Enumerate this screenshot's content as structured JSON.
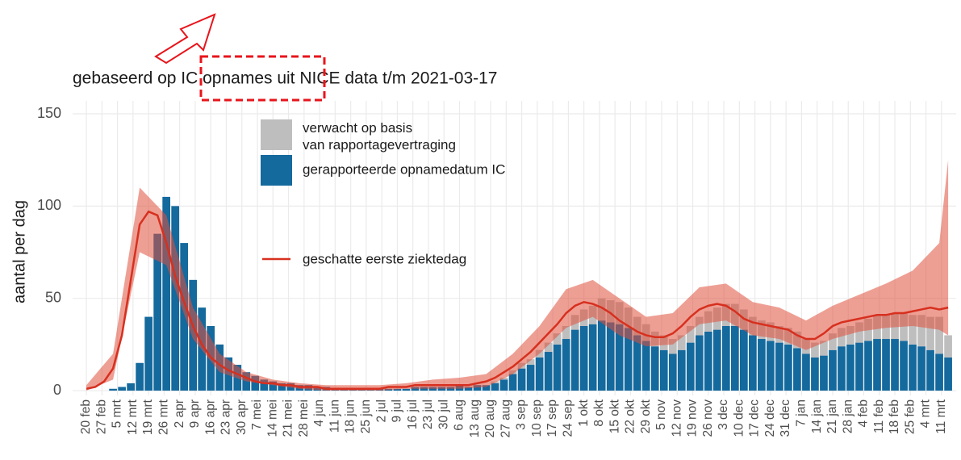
{
  "chart_data": {
    "type": "bar",
    "title": "gebaseerd op IC opnames uit NICE data t/m 2021-03-17",
    "ylabel": "aantal per dag",
    "x": [
      0,
      4,
      8,
      12,
      16,
      20,
      24,
      28,
      32,
      36,
      40,
      44,
      48,
      52,
      56,
      60,
      64,
      68,
      72,
      76,
      80,
      84,
      88,
      92,
      96,
      100,
      104,
      108,
      112,
      116,
      120,
      124,
      128,
      132,
      136,
      140,
      144,
      148,
      152,
      156,
      160,
      164,
      168,
      172,
      176,
      180,
      184,
      188,
      192,
      196,
      200,
      204,
      208,
      212,
      216,
      220,
      224,
      228,
      232,
      236,
      240,
      244,
      248,
      252,
      256,
      260,
      264,
      268,
      272,
      276,
      280,
      284,
      288,
      292,
      296,
      300,
      304,
      308,
      312,
      316,
      320,
      324,
      328,
      332,
      336,
      340,
      344,
      348,
      352,
      356,
      360,
      364,
      368,
      372,
      376,
      380,
      384,
      388
    ],
    "series": [
      {
        "name": "gerapporteerde opnamedatum IC",
        "color": "#14699d",
        "values": [
          0,
          0,
          0,
          1,
          2,
          4,
          15,
          40,
          85,
          105,
          100,
          80,
          60,
          45,
          35,
          25,
          18,
          14,
          10,
          8,
          6,
          5,
          4,
          4,
          3,
          3,
          2,
          2,
          1,
          1,
          1,
          1,
          1,
          1,
          1,
          1,
          1,
          2,
          2,
          2,
          2,
          2,
          3,
          2,
          3,
          3,
          4,
          6,
          9,
          12,
          14,
          18,
          21,
          25,
          28,
          33,
          35,
          36,
          38,
          37,
          36,
          34,
          30,
          27,
          24,
          22,
          20,
          22,
          26,
          30,
          32,
          33,
          35,
          35,
          33,
          30,
          28,
          27,
          26,
          25,
          23,
          20,
          18,
          19,
          22,
          24,
          25,
          26,
          27,
          28,
          28,
          28,
          27,
          25,
          24,
          22,
          20,
          18
        ]
      },
      {
        "name": "verwacht op basis van rapportagevertraging",
        "color": "#bebebe",
        "values": [
          0,
          0,
          0,
          0,
          0,
          0,
          0,
          0,
          0,
          0,
          0,
          0,
          0,
          0,
          0,
          0,
          0,
          0,
          0,
          0,
          0,
          0,
          0,
          0,
          0,
          0,
          0,
          0,
          0,
          0,
          0,
          0,
          0,
          0,
          0,
          0,
          0,
          0,
          0,
          0,
          0,
          0,
          0,
          0,
          0,
          0,
          1,
          1,
          2,
          3,
          3,
          4,
          5,
          6,
          7,
          8,
          9,
          10,
          12,
          12,
          12,
          11,
          10,
          9,
          8,
          8,
          8,
          8,
          9,
          10,
          11,
          12,
          12,
          12,
          11,
          10,
          10,
          10,
          9,
          9,
          9,
          8,
          8,
          8,
          9,
          10,
          10,
          11,
          12,
          13,
          13,
          14,
          15,
          16,
          17,
          18,
          20,
          12
        ]
      }
    ],
    "line": {
      "name": "geschatte eerste ziektedag",
      "color": "#d7301f",
      "values": [
        1,
        2,
        5,
        12,
        30,
        60,
        90,
        97,
        95,
        80,
        62,
        48,
        35,
        25,
        18,
        14,
        11,
        9,
        7,
        5,
        4,
        4,
        3,
        3,
        2,
        2,
        2,
        1,
        1,
        1,
        1,
        1,
        1,
        1,
        2,
        2,
        2,
        3,
        3,
        3,
        3,
        3,
        3,
        3,
        4,
        5,
        7,
        10,
        13,
        17,
        21,
        26,
        31,
        36,
        42,
        46,
        48,
        47,
        45,
        42,
        38,
        35,
        32,
        30,
        29,
        29,
        31,
        35,
        40,
        44,
        46,
        47,
        46,
        43,
        39,
        37,
        36,
        35,
        34,
        33,
        30,
        28,
        28,
        31,
        35,
        37,
        38,
        39,
        40,
        41,
        41,
        42,
        42,
        43,
        44,
        45,
        44,
        45
      ]
    },
    "band": {
      "color": "#e0503c",
      "x": [
        0,
        12,
        24,
        36,
        48,
        60,
        72,
        84,
        96,
        108,
        120,
        132,
        144,
        156,
        168,
        180,
        192,
        204,
        216,
        228,
        240,
        252,
        264,
        276,
        288,
        300,
        312,
        324,
        336,
        348,
        360,
        372,
        384,
        388
      ],
      "upper": [
        3,
        20,
        110,
        95,
        45,
        20,
        10,
        6,
        4,
        3,
        3,
        3,
        4,
        6,
        7,
        9,
        20,
        35,
        55,
        60,
        50,
        40,
        42,
        56,
        58,
        48,
        45,
        38,
        46,
        52,
        58,
        65,
        80,
        125
      ],
      "lower": [
        0,
        6,
        75,
        68,
        28,
        10,
        5,
        3,
        1,
        0,
        0,
        0,
        1,
        1,
        1,
        2,
        9,
        20,
        34,
        40,
        30,
        24,
        25,
        36,
        38,
        30,
        28,
        22,
        28,
        32,
        34,
        35,
        33,
        30
      ]
    },
    "xlim": [
      -6.2,
      391.6
    ],
    "ylim": [
      -2.6,
      157
    ],
    "yticks": [
      0,
      50,
      100,
      150
    ],
    "xticks": [
      {
        "value": 0,
        "label": "20 feb"
      },
      {
        "value": 7,
        "label": "27 feb"
      },
      {
        "value": 14,
        "label": "5 mrt"
      },
      {
        "value": 21,
        "label": "12 mrt"
      },
      {
        "value": 28,
        "label": "19 mrt"
      },
      {
        "value": 35,
        "label": "26 mrt"
      },
      {
        "value": 42,
        "label": "2 apr"
      },
      {
        "value": 49,
        "label": "9 apr"
      },
      {
        "value": 56,
        "label": "16 apr"
      },
      {
        "value": 63,
        "label": "23 apr"
      },
      {
        "value": 70,
        "label": "30 apr"
      },
      {
        "value": 77,
        "label": "7 mei"
      },
      {
        "value": 84,
        "label": "14 mei"
      },
      {
        "value": 91,
        "label": "21 mei"
      },
      {
        "value": 98,
        "label": "28 mei"
      },
      {
        "value": 105,
        "label": "4 jun"
      },
      {
        "value": 112,
        "label": "11 jun"
      },
      {
        "value": 119,
        "label": "18 jun"
      },
      {
        "value": 126,
        "label": "25 jun"
      },
      {
        "value": 133,
        "label": "2 jul"
      },
      {
        "value": 140,
        "label": "9 jul"
      },
      {
        "value": 147,
        "label": "16 jul"
      },
      {
        "value": 154,
        "label": "23 jul"
      },
      {
        "value": 161,
        "label": "30 jul"
      },
      {
        "value": 168,
        "label": "6 aug"
      },
      {
        "value": 175,
        "label": "13 aug"
      },
      {
        "value": 182,
        "label": "20 aug"
      },
      {
        "value": 189,
        "label": "27 aug"
      },
      {
        "value": 196,
        "label": "3 sep"
      },
      {
        "value": 203,
        "label": "10 sep"
      },
      {
        "value": 210,
        "label": "17 sep"
      },
      {
        "value": 217,
        "label": "24 sep"
      },
      {
        "value": 224,
        "label": "1 okt"
      },
      {
        "value": 231,
        "label": "8 okt"
      },
      {
        "value": 238,
        "label": "15 okt"
      },
      {
        "value": 245,
        "label": "22 okt"
      },
      {
        "value": 252,
        "label": "29 okt"
      },
      {
        "value": 259,
        "label": "5 nov"
      },
      {
        "value": 266,
        "label": "12 nov"
      },
      {
        "value": 273,
        "label": "19 nov"
      },
      {
        "value": 280,
        "label": "26 nov"
      },
      {
        "value": 287,
        "label": "3 dec"
      },
      {
        "value": 294,
        "label": "10 dec"
      },
      {
        "value": 301,
        "label": "17 dec"
      },
      {
        "value": 308,
        "label": "24 dec"
      },
      {
        "value": 315,
        "label": "31 dec"
      },
      {
        "value": 322,
        "label": "7 jan"
      },
      {
        "value": 329,
        "label": "14 jan"
      },
      {
        "value": 336,
        "label": "21 jan"
      },
      {
        "value": 343,
        "label": "28 jan"
      },
      {
        "value": 350,
        "label": "4 feb"
      },
      {
        "value": 357,
        "label": "11 feb"
      },
      {
        "value": 364,
        "label": "18 feb"
      },
      {
        "value": 371,
        "label": "25 feb"
      },
      {
        "value": 378,
        "label": "4 mrt"
      },
      {
        "value": 385,
        "label": "11 mrt"
      }
    ],
    "grid": true
  }
}
